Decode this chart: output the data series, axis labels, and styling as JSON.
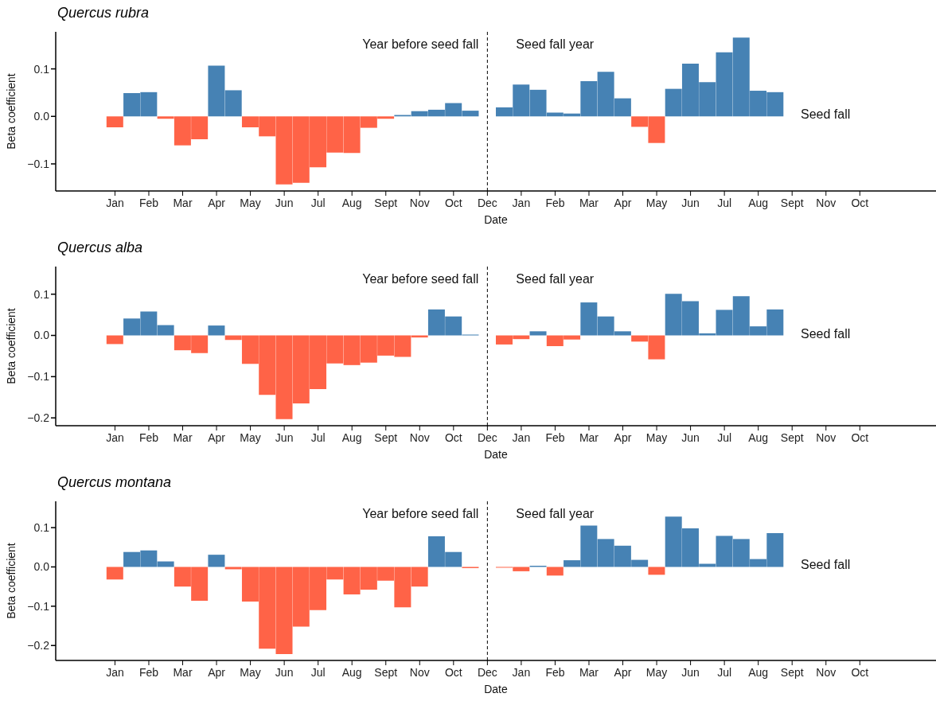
{
  "chart_data": [
    {
      "type": "bar",
      "title": "Quercus rubra",
      "xlabel": "Date",
      "ylabel": "Beta coefficient",
      "categories": [
        null,
        null,
        null,
        "Jan",
        null,
        "Feb",
        null,
        "Mar",
        null,
        "Apr",
        null,
        "May",
        null,
        "Jun",
        null,
        "Jul",
        null,
        "Aug",
        null,
        "Sept",
        null,
        "Nov",
        null,
        "Oct",
        null,
        "Dec",
        null,
        "Jan",
        null,
        "Feb",
        null,
        "Mar",
        null,
        "Apr",
        null,
        "May",
        null,
        "Jun",
        null,
        "Jul",
        null,
        "Aug",
        null,
        "Sept",
        null,
        "Nov",
        null,
        "Oct",
        null,
        null,
        null,
        null
      ],
      "values": [
        null,
        null,
        null,
        -0.023,
        0.049,
        0.051,
        -0.005,
        -0.061,
        -0.048,
        0.107,
        0.055,
        -0.023,
        -0.042,
        -0.143,
        -0.14,
        -0.107,
        -0.076,
        -0.077,
        -0.024,
        -0.005,
        0.003,
        0.011,
        0.014,
        0.028,
        0.012,
        null,
        0.019,
        0.067,
        0.056,
        0.008,
        0.006,
        0.074,
        0.094,
        0.038,
        -0.022,
        -0.056,
        0.058,
        0.111,
        0.072,
        0.135,
        0.166,
        0.054,
        0.051,
        null,
        null,
        null,
        null,
        null,
        null,
        null,
        null,
        null
      ],
      "colors": [
        null,
        null,
        null,
        "#ff6347",
        "#4682b4",
        "#4682b4",
        "#ff6347",
        "#ff6347",
        "#ff6347",
        "#4682b4",
        "#4682b4",
        "#ff6347",
        "#ff6347",
        "#ff6347",
        "#ff6347",
        "#ff6347",
        "#ff6347",
        "#ff6347",
        "#ff6347",
        "#ff6347",
        "#4682b4",
        "#4682b4",
        "#4682b4",
        "#4682b4",
        "#4682b4",
        null,
        "#4682b4",
        "#4682b4",
        "#4682b4",
        "#4682b4",
        "#4682b4",
        "#4682b4",
        "#4682b4",
        "#4682b4",
        "#ff6347",
        "#ff6347",
        "#4682b4",
        "#4682b4",
        "#4682b4",
        "#4682b4",
        "#4682b4",
        "#4682b4",
        "#4682b4",
        null,
        null,
        null,
        null,
        null,
        null,
        null,
        null,
        null
      ],
      "ylim": [
        -0.157,
        0.178
      ],
      "yticks": [
        {
          "value": -0.1,
          "label": "−0.1"
        },
        {
          "value": 0,
          "label": "0.0"
        },
        {
          "value": 0.1,
          "label": "0.1"
        }
      ],
      "ref_lines": [
        {
          "axis": "x",
          "value": "Dec",
          "label": null,
          "color": "#000000",
          "line_style": "dashed"
        }
      ],
      "annotations": [
        "Year before seed fall",
        "Seed fall year",
        "Seed fall"
      ]
    },
    {
      "type": "bar",
      "title": "Quercus alba",
      "xlabel": "Date",
      "ylabel": "Beta coefficient",
      "categories": [
        null,
        null,
        null,
        "Jan",
        null,
        "Feb",
        null,
        "Mar",
        null,
        "Apr",
        null,
        "May",
        null,
        "Jun",
        null,
        "Jul",
        null,
        "Aug",
        null,
        "Sept",
        null,
        "Nov",
        null,
        "Oct",
        null,
        "Dec",
        null,
        "Jan",
        null,
        "Feb",
        null,
        "Mar",
        null,
        "Apr",
        null,
        "May",
        null,
        "Jun",
        null,
        "Jul",
        null,
        "Aug",
        null,
        "Sept",
        null,
        "Nov",
        null,
        "Oct",
        null,
        null,
        null,
        null
      ],
      "values": [
        null,
        null,
        null,
        -0.021,
        0.041,
        0.058,
        0.025,
        -0.036,
        -0.043,
        0.024,
        -0.011,
        -0.069,
        -0.144,
        -0.203,
        -0.165,
        -0.13,
        -0.068,
        -0.072,
        -0.066,
        -0.049,
        -0.052,
        -0.005,
        0.063,
        0.046,
        0.002,
        null,
        -0.022,
        -0.009,
        0.01,
        -0.026,
        -0.01,
        0.08,
        0.046,
        0.01,
        -0.015,
        -0.058,
        0.101,
        0.083,
        0.005,
        0.062,
        0.095,
        0.022,
        0.063,
        null,
        null,
        null,
        null,
        null,
        null,
        null,
        null,
        null
      ],
      "colors": [
        null,
        null,
        null,
        "#ff6347",
        "#4682b4",
        "#4682b4",
        "#4682b4",
        "#ff6347",
        "#ff6347",
        "#4682b4",
        "#ff6347",
        "#ff6347",
        "#ff6347",
        "#ff6347",
        "#ff6347",
        "#ff6347",
        "#ff6347",
        "#ff6347",
        "#ff6347",
        "#ff6347",
        "#ff6347",
        "#ff6347",
        "#4682b4",
        "#4682b4",
        "#4682b4",
        null,
        "#ff6347",
        "#ff6347",
        "#4682b4",
        "#ff6347",
        "#ff6347",
        "#4682b4",
        "#4682b4",
        "#4682b4",
        "#ff6347",
        "#ff6347",
        "#4682b4",
        "#4682b4",
        "#4682b4",
        "#4682b4",
        "#4682b4",
        "#4682b4",
        "#4682b4",
        null,
        null,
        null,
        null,
        null,
        null,
        null,
        null,
        null
      ],
      "ylim": [
        -0.219,
        0.167
      ],
      "yticks": [
        {
          "value": -0.2,
          "label": "−0.2"
        },
        {
          "value": -0.1,
          "label": "−0.1"
        },
        {
          "value": 0,
          "label": "0.0"
        },
        {
          "value": 0.1,
          "label": "0.1"
        }
      ],
      "ref_lines": [
        {
          "axis": "x",
          "value": "Dec",
          "label": null,
          "color": "#000000",
          "line_style": "dashed"
        }
      ],
      "annotations": [
        "Year before seed fall",
        "Seed fall year",
        "Seed fall"
      ]
    },
    {
      "type": "bar",
      "title": "Quercus montana",
      "xlabel": "Date",
      "ylabel": "Beta coefficient",
      "categories": [
        null,
        null,
        null,
        "Jan",
        null,
        "Feb",
        null,
        "Mar",
        null,
        "Apr",
        null,
        "May",
        null,
        "Jun",
        null,
        "Jul",
        null,
        "Aug",
        null,
        "Sept",
        null,
        "Nov",
        null,
        "Oct",
        null,
        "Dec",
        null,
        "Jan",
        null,
        "Feb",
        null,
        "Mar",
        null,
        "Apr",
        null,
        "May",
        null,
        "Jun",
        null,
        "Jul",
        null,
        "Aug",
        null,
        "Sept",
        null,
        "Nov",
        null,
        "Oct",
        null,
        null,
        null,
        null
      ],
      "values": [
        null,
        null,
        null,
        -0.032,
        0.038,
        0.042,
        0.014,
        -0.05,
        -0.086,
        0.031,
        -0.006,
        -0.088,
        -0.208,
        -0.222,
        -0.152,
        -0.11,
        -0.032,
        -0.07,
        -0.058,
        -0.035,
        -0.103,
        -0.05,
        0.078,
        0.038,
        -0.003,
        null,
        -0.002,
        -0.011,
        0.003,
        -0.022,
        0.017,
        0.105,
        0.071,
        0.054,
        0.018,
        -0.02,
        0.128,
        0.098,
        0.008,
        0.079,
        0.071,
        0.02,
        0.086,
        null,
        null,
        null,
        null,
        null,
        null,
        null,
        null,
        null
      ],
      "colors": [
        null,
        null,
        null,
        "#ff6347",
        "#4682b4",
        "#4682b4",
        "#4682b4",
        "#ff6347",
        "#ff6347",
        "#4682b4",
        "#ff6347",
        "#ff6347",
        "#ff6347",
        "#ff6347",
        "#ff6347",
        "#ff6347",
        "#ff6347",
        "#ff6347",
        "#ff6347",
        "#ff6347",
        "#ff6347",
        "#ff6347",
        "#4682b4",
        "#4682b4",
        "#ff6347",
        null,
        "#ff6347",
        "#ff6347",
        "#4682b4",
        "#ff6347",
        "#4682b4",
        "#4682b4",
        "#4682b4",
        "#4682b4",
        "#4682b4",
        "#ff6347",
        "#4682b4",
        "#4682b4",
        "#4682b4",
        "#4682b4",
        "#4682b4",
        "#4682b4",
        "#4682b4",
        null,
        null,
        null,
        null,
        null,
        null,
        null,
        null,
        null
      ],
      "ylim": [
        -0.238,
        0.167
      ],
      "yticks": [
        {
          "value": -0.2,
          "label": "−0.2"
        },
        {
          "value": -0.1,
          "label": "−0.1"
        },
        {
          "value": 0,
          "label": "0.0"
        },
        {
          "value": 0.1,
          "label": "0.1"
        }
      ],
      "ref_lines": [
        {
          "axis": "x",
          "value": "Dec",
          "label": null,
          "color": "#000000",
          "line_style": "dashed"
        }
      ],
      "annotations": [
        "Year before seed fall",
        "Seed fall year",
        "Seed fall"
      ]
    }
  ]
}
